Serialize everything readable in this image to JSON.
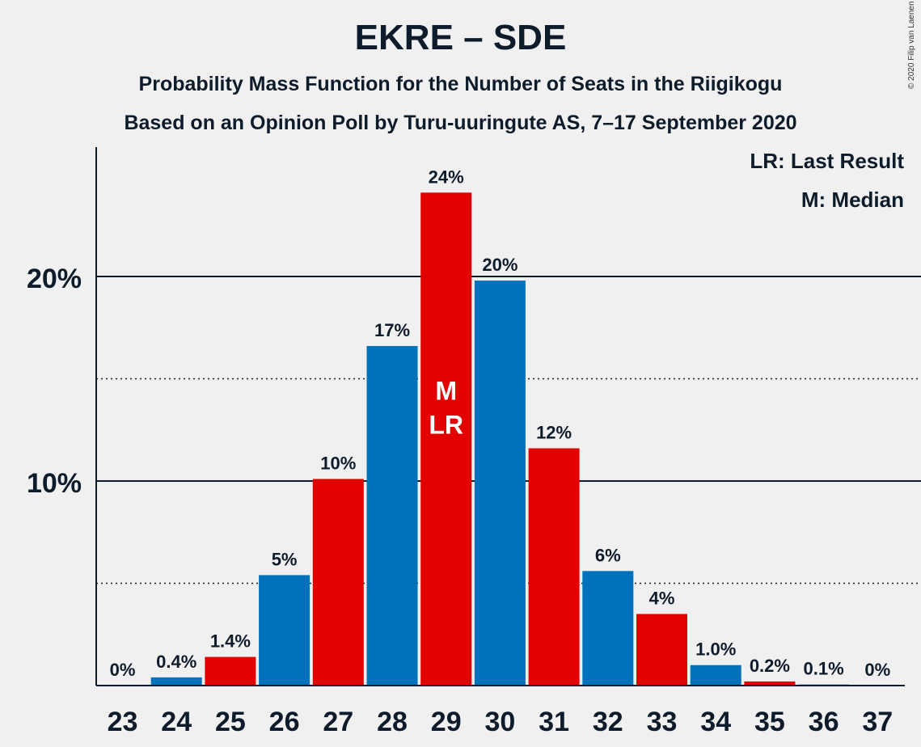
{
  "chart_data": {
    "type": "bar",
    "title": "EKRE – SDE",
    "subtitle": "Probability Mass Function for the Number of Seats in the Riigikogu",
    "subtitle2": "Based on an Opinion Poll by Turu-uuringute AS, 7–17 September 2020",
    "copyright": "© 2020 Filip van Laenen",
    "legend": {
      "lr": "LR: Last Result",
      "m": "M: Median",
      "position": "top-right"
    },
    "categories": [
      "23",
      "24",
      "25",
      "26",
      "27",
      "28",
      "29",
      "30",
      "31",
      "32",
      "33",
      "34",
      "35",
      "36",
      "37"
    ],
    "values": [
      0,
      0.4,
      1.4,
      5.4,
      10.1,
      16.6,
      24.1,
      19.8,
      11.6,
      5.6,
      3.5,
      1.0,
      0.2,
      0.05,
      0
    ],
    "labels": [
      "0%",
      "0.4%",
      "1.4%",
      "5%",
      "10%",
      "17%",
      "24%",
      "20%",
      "12%",
      "6%",
      "4%",
      "1.0%",
      "0.2%",
      "0.1%",
      "0%"
    ],
    "bar_colors": [
      "#e30000",
      "#0072bb",
      "#e30000",
      "#0072bb",
      "#e30000",
      "#0072bb",
      "#e30000",
      "#0072bb",
      "#e30000",
      "#0072bb",
      "#e30000",
      "#0072bb",
      "#e30000",
      "#0072bb",
      "#e30000"
    ],
    "markers": {
      "29": "M\nLR"
    },
    "yticks": [
      {
        "value": 10,
        "label": "10%"
      },
      {
        "value": 20,
        "label": "20%"
      }
    ],
    "dotted_grid": [
      5,
      15
    ],
    "ylim": [
      0,
      26.3
    ],
    "grid": true
  }
}
